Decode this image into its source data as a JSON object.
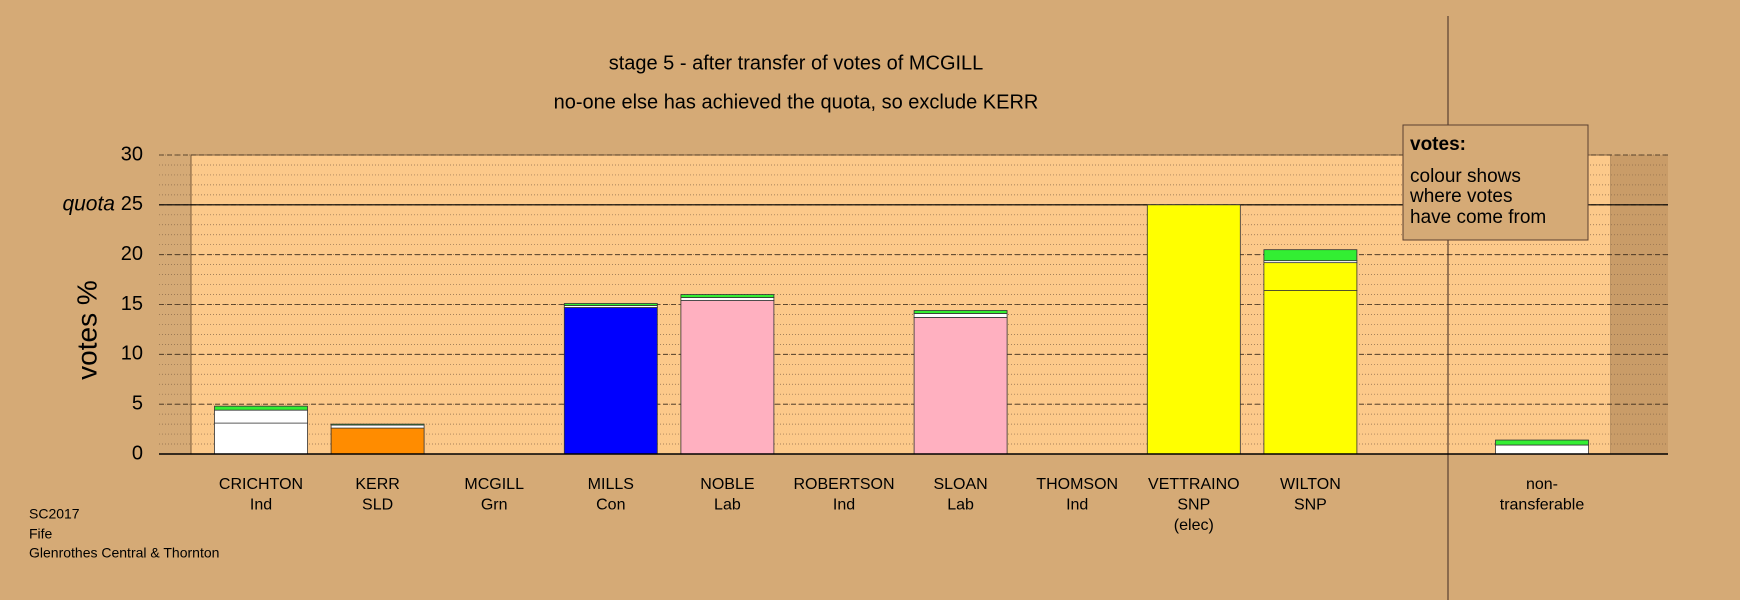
{
  "chart_data": {
    "type": "stacked_bar",
    "title": "stage 5 - after transfer of votes of MCGILL",
    "subtitle": "no-one else has achieved the quota, so exclude KERR",
    "y_label": "votes %",
    "quota_label": "quota",
    "quota": 25,
    "categories": [
      [
        "CRICHTON",
        "Ind"
      ],
      [
        "KERR",
        "SLD"
      ],
      [
        "MCGILL",
        "Grn"
      ],
      [
        "MILLS",
        "Con"
      ],
      [
        "NOBLE",
        "Lab"
      ],
      [
        "ROBERTSON",
        "Ind"
      ],
      [
        "SLOAN",
        "Lab"
      ],
      [
        "THOMSON",
        "Ind"
      ],
      [
        "VETTRAINO",
        "SNP",
        "(elec)"
      ],
      [
        "WILTON",
        "SNP"
      ],
      [
        "non-",
        "transferable"
      ]
    ],
    "series": [
      {
        "colors": [
          "#ffffff",
          "#ff8c00",
          "#33ee33",
          "#0000ff",
          "#ffb0c0",
          "#ffffff",
          "#ffb0c0",
          "#ffffff",
          "#ffff00",
          "#ffff00",
          "#ffffff"
        ],
        "values": [
          3.1,
          2.6,
          0,
          14.7,
          15.4,
          0,
          13.7,
          0,
          25.0,
          16.4,
          0
        ]
      },
      {
        "color": "#ffff00",
        "values": [
          0,
          0,
          0,
          0,
          0,
          0,
          0,
          0,
          0,
          2.8,
          0
        ]
      },
      {
        "color": "#ffffff",
        "values": [
          1.3,
          0.3,
          0,
          0.2,
          0.3,
          0,
          0.4,
          0,
          0,
          0.2,
          0.9
        ]
      },
      {
        "color": "#33ee33",
        "values": [
          0.4,
          0.1,
          0,
          0.2,
          0.3,
          0,
          0.3,
          0,
          0,
          1.1,
          0.5
        ]
      }
    ],
    "ylim": [
      0,
      30
    ],
    "yticks": [
      0,
      5,
      10,
      15,
      20,
      25,
      30
    ],
    "minor_step": 1,
    "grid": true,
    "legend_note": {
      "title": "votes:",
      "lines": [
        "colour shows",
        "where votes",
        "have come from"
      ]
    },
    "footer": [
      "SC2017",
      "Fife",
      "Glenrothes Central & Thornton"
    ]
  }
}
